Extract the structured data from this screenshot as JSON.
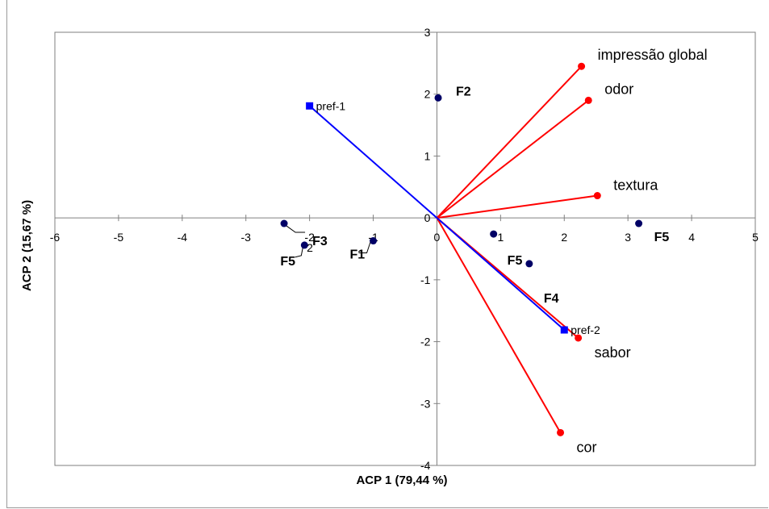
{
  "chart_data": {
    "type": "scatter",
    "xlabel": "ACP 1 (79,44 %)",
    "ylabel": "ACP 2 (15,67 %)",
    "xlim": [
      -6,
      5
    ],
    "ylim": [
      -4,
      3
    ],
    "x_ticks": [
      "-6",
      "-5",
      "-4",
      "-3",
      "-2",
      "-1",
      "0",
      "1",
      "2",
      "3",
      "4",
      "5"
    ],
    "y_ticks": [
      "3",
      "2",
      "1",
      "0",
      "-1",
      "-2",
      "-3",
      "-4"
    ],
    "grid": false,
    "colors": {
      "variables": "#ff0000",
      "preferences": "#0000ff",
      "samples": "#000066"
    },
    "variables": [
      {
        "name": "impressão global",
        "x": 2.27,
        "y": 2.45
      },
      {
        "name": "odor",
        "x": 2.38,
        "y": 1.9
      },
      {
        "name": "textura",
        "x": 2.52,
        "y": 0.36
      },
      {
        "name": "sabor",
        "x": 2.22,
        "y": -1.94
      },
      {
        "name": "cor",
        "x": 1.94,
        "y": -3.47
      }
    ],
    "preferences": [
      {
        "name": "pref-1",
        "x": -2.0,
        "y": 1.81
      },
      {
        "name": "pref-2",
        "x": 2.0,
        "y": -1.81
      }
    ],
    "samples": [
      {
        "name": "F2",
        "x": 0.02,
        "y": 1.94
      },
      {
        "name": "F5",
        "x": 3.17,
        "y": -0.09
      },
      {
        "name": "F5",
        "x": 0.89,
        "y": -0.26
      },
      {
        "name": "F4",
        "x": 1.45,
        "y": -0.74
      },
      {
        "name": "F1",
        "x": -1.0,
        "y": -0.37
      },
      {
        "name": "F3",
        "x": -2.4,
        "y": -0.09
      },
      {
        "name": "F5",
        "x": -2.08,
        "y": -0.44
      }
    ],
    "stray_label": "2"
  }
}
